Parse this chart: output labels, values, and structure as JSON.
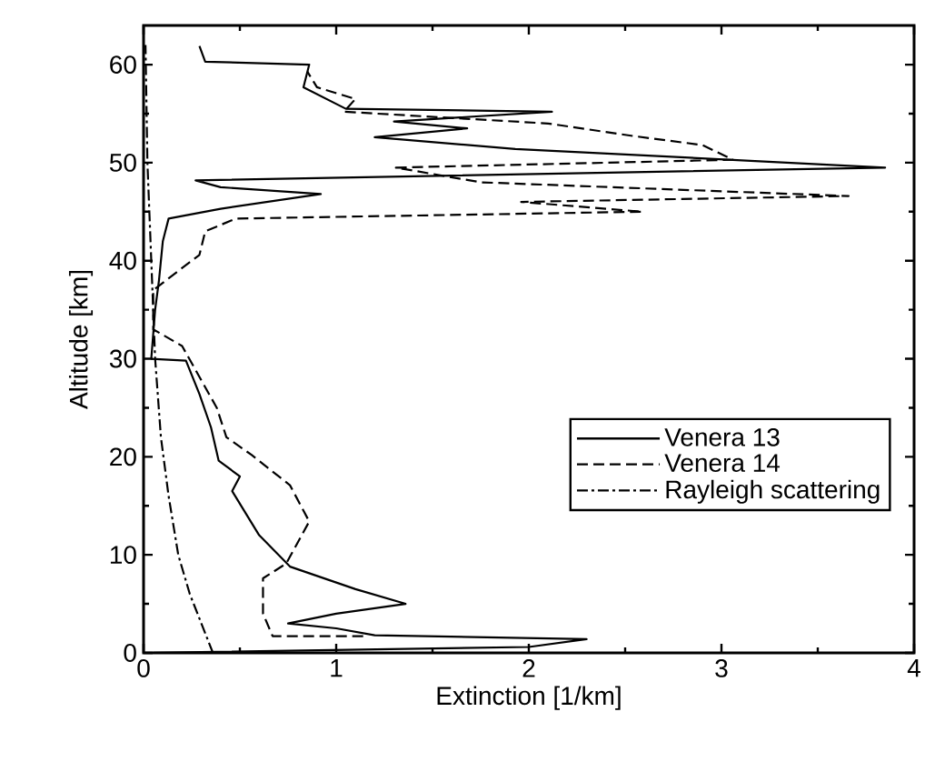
{
  "chart_data": {
    "type": "line",
    "xlabel": "Extinction [1/km]",
    "ylabel": "Altitude [km]",
    "xlim": [
      0,
      4
    ],
    "ylim": [
      0,
      64
    ],
    "xticks": [
      0,
      1,
      2,
      3,
      4
    ],
    "yticks": [
      0,
      10,
      20,
      30,
      40,
      50,
      60
    ],
    "legend": "right",
    "marker": "none",
    "grid": false,
    "series": [
      {
        "name": "Venera 13",
        "color": "#000000",
        "line_style": "solid",
        "x": [
          0.05,
          2.0,
          2.3,
          1.2,
          1.0,
          0.75,
          1.0,
          1.36,
          1.1,
          0.76,
          0.6,
          0.46,
          0.5,
          0.39,
          0.35,
          0.29,
          0.22,
          0.04,
          0.06,
          0.08,
          0.1,
          0.13,
          0.4,
          0.92,
          0.4,
          0.27,
          3.85,
          1.93,
          1.2,
          1.68,
          1.3,
          2.12,
          1.05,
          0.83,
          0.86,
          0.32,
          0.29
        ],
        "values": [
          0,
          0.6,
          1.4,
          1.8,
          2.5,
          3.0,
          4.0,
          5.0,
          6.5,
          8.8,
          12,
          16.5,
          18,
          19.6,
          23,
          26.4,
          29.8,
          30,
          35,
          38,
          42,
          44.3,
          45.3,
          46.8,
          47.5,
          48.2,
          49.5,
          51.4,
          52.6,
          53.5,
          54.2,
          55.2,
          55.5,
          57.7,
          60,
          60.3,
          61.9
        ]
      },
      {
        "name": "Venera 14",
        "color": "#000000",
        "line_style": "dashed",
        "x": [
          1.14,
          0.67,
          0.62,
          0.62,
          0.74,
          0.86,
          0.76,
          0.56,
          0.43,
          0.38,
          0.2,
          0.05,
          0.05,
          0.29,
          0.32,
          0.48,
          2.59,
          1.96,
          3.66,
          1.75,
          1.31,
          3.06,
          2.9,
          2.55,
          2.1,
          1.04,
          1.1,
          0.9,
          0.85
        ],
        "values": [
          1.7,
          1.7,
          4,
          7.6,
          9.1,
          13.4,
          17.1,
          20.2,
          22,
          25,
          31.3,
          33,
          37,
          40.6,
          43,
          44.3,
          45,
          46,
          46.6,
          48,
          49.5,
          50.3,
          51.8,
          52.7,
          54,
          55.2,
          56.5,
          57.7,
          59.3
        ]
      },
      {
        "name": "Rayleigh scattering",
        "color": "#000000",
        "line_style": "dashdotted",
        "x": [
          0.36,
          0.3,
          0.24,
          0.18,
          0.13,
          0.09,
          0.06,
          0.04,
          0.02,
          0.01
        ],
        "values": [
          0,
          3,
          6,
          10,
          16,
          22,
          30,
          40,
          50,
          62
        ]
      }
    ]
  }
}
